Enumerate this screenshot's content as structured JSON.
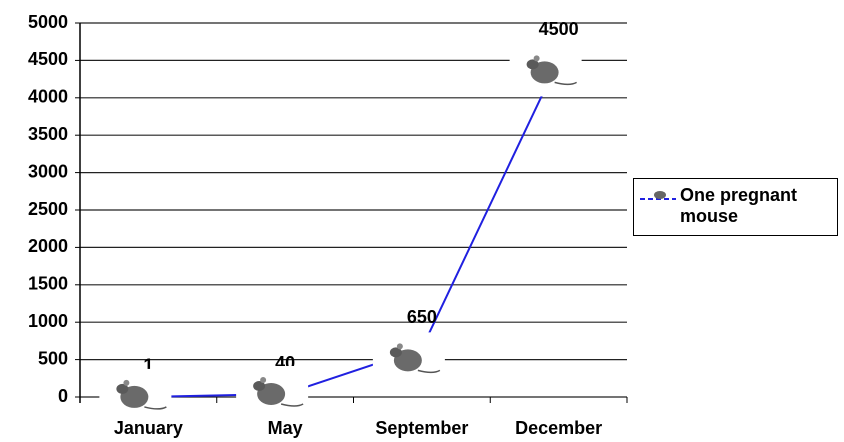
{
  "chart_data": {
    "type": "line",
    "categories": [
      "January",
      "May",
      "September",
      "December"
    ],
    "series": [
      {
        "name": "One pregnant mouse",
        "color": "#2020e0",
        "values": [
          1,
          40,
          650,
          4500
        ]
      }
    ],
    "ylim": [
      0,
      5000
    ],
    "yticks": [
      0,
      500,
      1000,
      1500,
      2000,
      2500,
      3000,
      3500,
      4000,
      4500,
      5000
    ],
    "grid": true,
    "legend": "right"
  }
}
